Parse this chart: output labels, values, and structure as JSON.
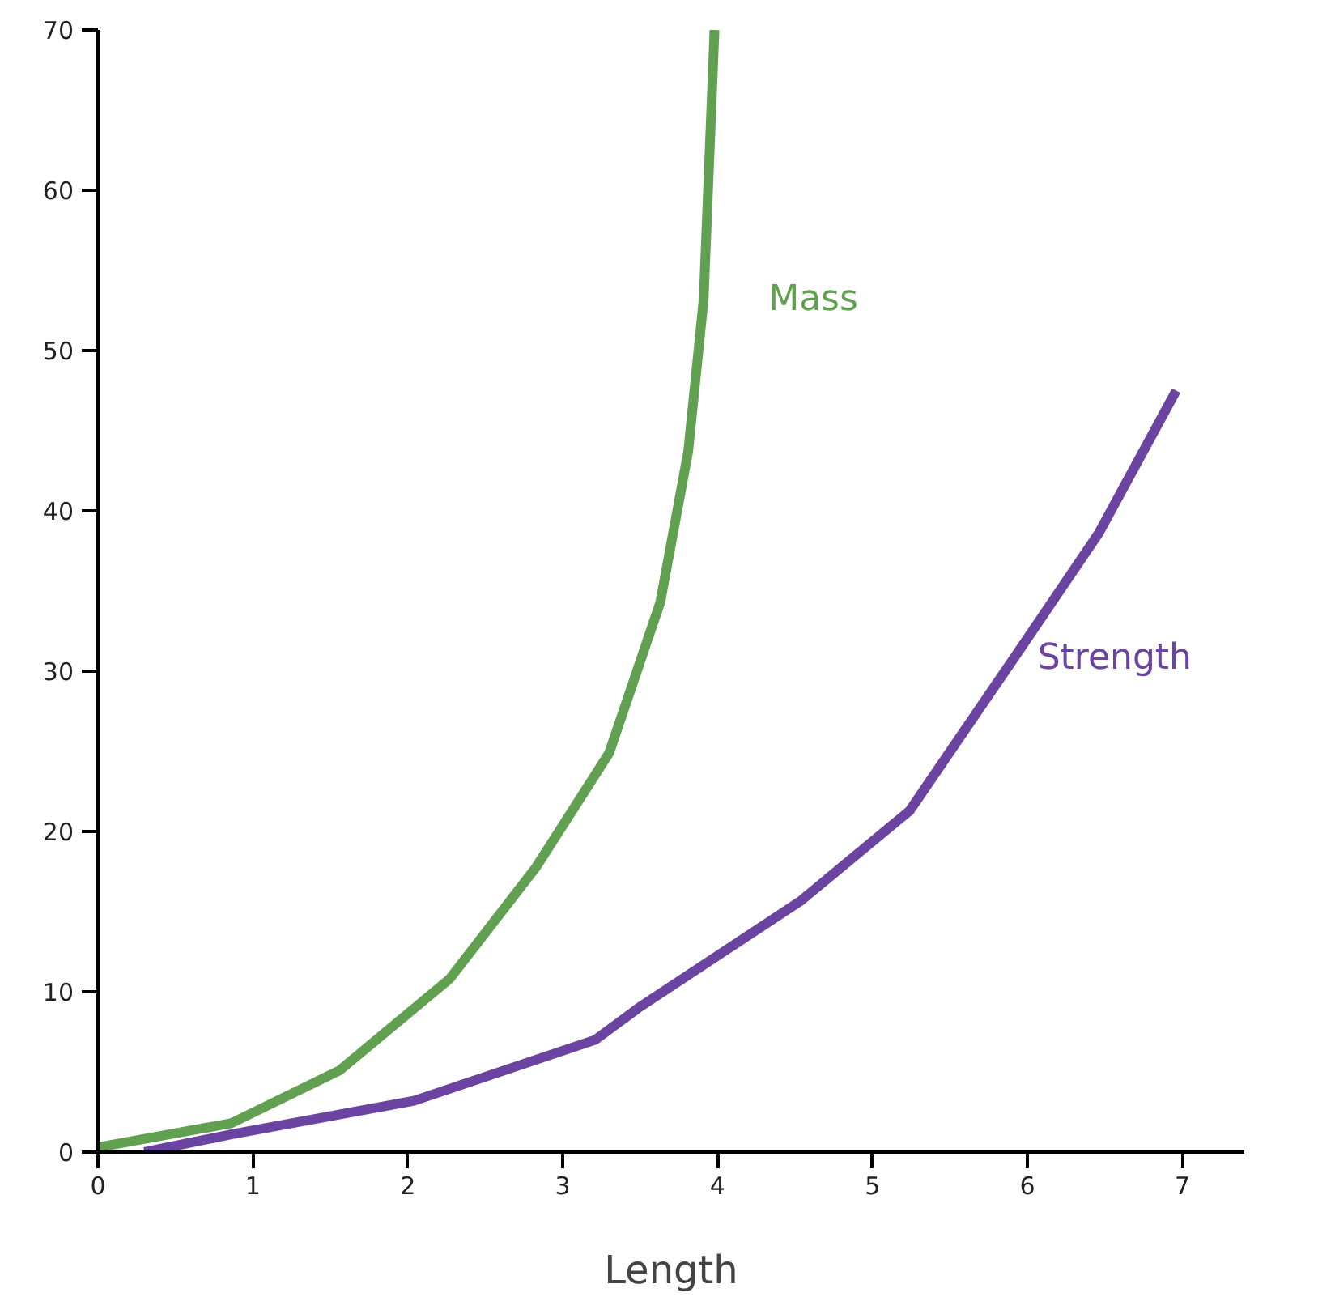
{
  "chart_data": {
    "type": "line",
    "xlabel": "Length",
    "xlim": [
      0,
      7.4
    ],
    "ylim": [
      0,
      70
    ],
    "xticks": [
      0,
      1,
      2,
      3,
      4,
      5,
      6,
      7
    ],
    "yticks": [
      0,
      10,
      20,
      30,
      40,
      50,
      60,
      70
    ],
    "grid": false,
    "marker": "none",
    "line_style": "solid",
    "series": [
      {
        "name": "Mass",
        "color": "#60a050",
        "x": [
          0,
          0.86,
          1.56,
          2.27,
          2.83,
          3.3,
          3.63,
          3.81,
          3.91,
          3.98
        ],
        "values": [
          0.3,
          1.8,
          5.1,
          10.8,
          17.8,
          24.9,
          34.3,
          43.7,
          53.2,
          70
        ]
      },
      {
        "name": "Strength",
        "color": "#6a44a0",
        "x": [
          0.3,
          0.86,
          2.04,
          3.21,
          3.49,
          4.54,
          5.24,
          5.94,
          6.46,
          6.96
        ],
        "values": [
          0,
          1.1,
          3.2,
          7.0,
          9.0,
          15.7,
          21.3,
          31.2,
          38.6,
          47.5
        ]
      }
    ]
  }
}
